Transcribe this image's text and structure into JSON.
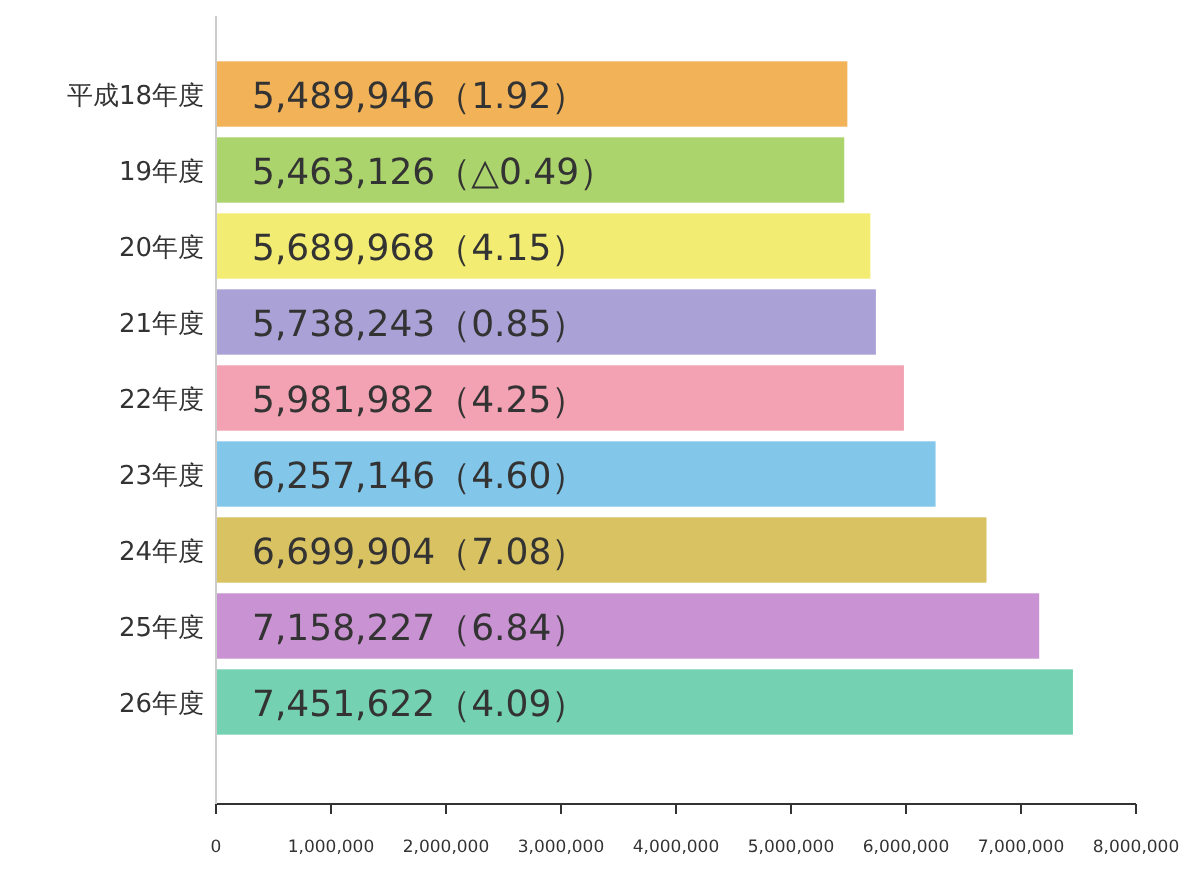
{
  "chart_data": {
    "type": "bar",
    "orientation": "horizontal",
    "categories": [
      "平成18年度",
      "19年度",
      "20年度",
      "21年度",
      "22年度",
      "23年度",
      "24年度",
      "25年度",
      "26年度"
    ],
    "values": [
      5489946,
      5463126,
      5689968,
      5738243,
      5981982,
      6257146,
      6699904,
      7158227,
      7451622
    ],
    "colors": [
      "#f2b257",
      "#acd46c",
      "#f2ec72",
      "#aaa2d6",
      "#f2a2b2",
      "#82c6ea",
      "#d9c262",
      "#c992d2",
      "#74d2b2"
    ],
    "value_labels": [
      "5,489,946（1.92）",
      "5,463,126（△0.49）",
      "5,689,968（4.15）",
      "5,738,243（0.85）",
      "5,981,982（4.25）",
      "6,257,146（4.60）",
      "6,699,904（7.08）",
      "7,158,227（6.84）",
      "7,451,622（4.09）"
    ],
    "xlim": [
      0,
      8000000
    ],
    "xticks": [
      {
        "value": 0,
        "label": "0"
      },
      {
        "value": 1000000,
        "label": "1,000,000"
      },
      {
        "value": 2000000,
        "label": "2,000,000"
      },
      {
        "value": 3000000,
        "label": "3,000,000"
      },
      {
        "value": 4000000,
        "label": "4,000,000"
      },
      {
        "value": 5000000,
        "label": "5,000,000"
      },
      {
        "value": 6000000,
        "label": "6,000,000"
      },
      {
        "value": 7000000,
        "label": "7,000,000"
      },
      {
        "value": 8000000,
        "label": "8,000,000"
      }
    ],
    "grid": false
  }
}
